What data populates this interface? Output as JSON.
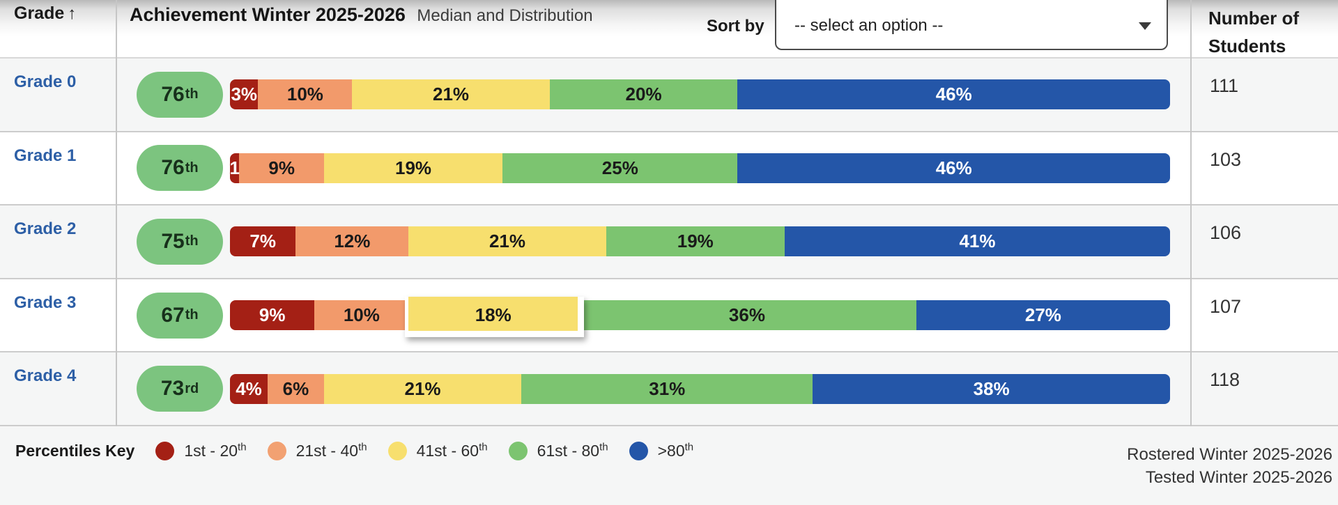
{
  "header": {
    "grade_label": "Grade",
    "sort_arrow": "↑",
    "title": "Achievement Winter 2025-2026",
    "subtitle": "Median and Distribution",
    "sort_by_label": "Sort by",
    "sort_select_value": "-- select an option --",
    "students_header": "Number of Students"
  },
  "palette": {
    "red": {
      "bg": "#A42015",
      "text": "#ffffff"
    },
    "orange": {
      "bg": "#F29A6B",
      "text": "#1a1a1a"
    },
    "yellow": {
      "bg": "#F7DF6E",
      "text": "#1a1a1a"
    },
    "green": {
      "bg": "#7CC470",
      "text": "#1a1a1a"
    },
    "blue": {
      "bg": "#2456A8",
      "text": "#ffffff"
    }
  },
  "pill_style": {
    "bg": "#7CC47F",
    "text": "#17301b"
  },
  "rows": [
    {
      "grade": "Grade 0",
      "median": {
        "value": "76",
        "suffix": "th"
      },
      "students": "111",
      "segments": [
        {
          "color": "red",
          "value": 3,
          "label": "3%"
        },
        {
          "color": "orange",
          "value": 10,
          "label": "10%"
        },
        {
          "color": "yellow",
          "value": 21,
          "label": "21%"
        },
        {
          "color": "green",
          "value": 20,
          "label": "20%"
        },
        {
          "color": "blue",
          "value": 46,
          "label": "46%"
        }
      ]
    },
    {
      "grade": "Grade 1",
      "median": {
        "value": "76",
        "suffix": "th"
      },
      "students": "103",
      "segments": [
        {
          "color": "red",
          "value": 1,
          "label": "1"
        },
        {
          "color": "orange",
          "value": 9,
          "label": "9%"
        },
        {
          "color": "yellow",
          "value": 19,
          "label": "19%"
        },
        {
          "color": "green",
          "value": 25,
          "label": "25%"
        },
        {
          "color": "blue",
          "value": 46,
          "label": "46%"
        }
      ]
    },
    {
      "grade": "Grade 2",
      "median": {
        "value": "75",
        "suffix": "th"
      },
      "students": "106",
      "segments": [
        {
          "color": "red",
          "value": 7,
          "label": "7%"
        },
        {
          "color": "orange",
          "value": 12,
          "label": "12%"
        },
        {
          "color": "yellow",
          "value": 21,
          "label": "21%"
        },
        {
          "color": "green",
          "value": 19,
          "label": "19%"
        },
        {
          "color": "blue",
          "value": 41,
          "label": "41%"
        }
      ]
    },
    {
      "grade": "Grade 3",
      "median": {
        "value": "67",
        "suffix": "th"
      },
      "students": "107",
      "segments": [
        {
          "color": "red",
          "value": 9,
          "label": "9%"
        },
        {
          "color": "orange",
          "value": 10,
          "label": "10%"
        },
        {
          "color": "yellow",
          "value": 18,
          "label": "18%",
          "popped": true
        },
        {
          "color": "green",
          "value": 36,
          "label": "36%"
        },
        {
          "color": "blue",
          "value": 27,
          "label": "27%"
        }
      ]
    },
    {
      "grade": "Grade 4",
      "median": {
        "value": "73",
        "suffix": "rd"
      },
      "students": "118",
      "segments": [
        {
          "color": "red",
          "value": 4,
          "label": "4%"
        },
        {
          "color": "orange",
          "value": 6,
          "label": "6%"
        },
        {
          "color": "yellow",
          "value": 21,
          "label": "21%"
        },
        {
          "color": "green",
          "value": 31,
          "label": "31%"
        },
        {
          "color": "blue",
          "value": 38,
          "label": "38%"
        }
      ]
    }
  ],
  "legend": {
    "title": "Percentiles Key",
    "items": [
      {
        "label": "1st - 20",
        "sup": "th",
        "color": "#A42015"
      },
      {
        "label": "21st - 40",
        "sup": "th",
        "color": "#F2A172"
      },
      {
        "label": "41st - 60",
        "sup": "th",
        "color": "#F7DF6E"
      },
      {
        "label": "61st - 80",
        "sup": "th",
        "color": "#7CC470"
      },
      {
        "label": ">80",
        "sup": "th",
        "color": "#2456A8"
      }
    ]
  },
  "footer": {
    "rostered_label": "Rostered Winter 2025-2026",
    "tested_label": "Tested Winter 2025-2026"
  },
  "chart_data": {
    "type": "bar",
    "stacked": true,
    "orientation": "horizontal",
    "unit": "%",
    "title": "Achievement Winter 2025-2026 Median and Distribution",
    "categories": [
      "Grade 0",
      "Grade 1",
      "Grade 2",
      "Grade 3",
      "Grade 4"
    ],
    "series": [
      {
        "name": "1st - 20th",
        "values": [
          3,
          1,
          7,
          9,
          4
        ]
      },
      {
        "name": "21st - 40th",
        "values": [
          10,
          9,
          12,
          10,
          6
        ]
      },
      {
        "name": "41st - 60th",
        "values": [
          21,
          19,
          21,
          18,
          21
        ]
      },
      {
        "name": "61st - 80th",
        "values": [
          20,
          25,
          19,
          36,
          31
        ]
      },
      {
        "name": ">80th",
        "values": [
          46,
          46,
          41,
          27,
          38
        ]
      }
    ],
    "medians": [
      "76th",
      "76th",
      "75th",
      "67th",
      "73rd"
    ],
    "student_counts": [
      111,
      103,
      106,
      107,
      118
    ],
    "legend_position": "bottom"
  }
}
